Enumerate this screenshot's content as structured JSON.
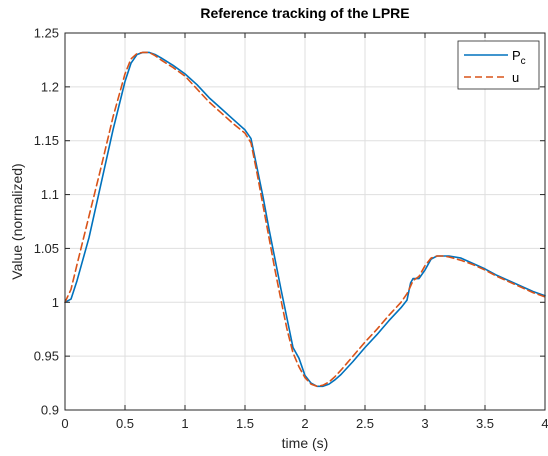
{
  "chart_data": {
    "type": "line",
    "title": "Reference tracking of the LPRE",
    "xlabel": "time (s)",
    "ylabel": "Value (normalized)",
    "xlim": [
      0,
      4
    ],
    "ylim": [
      0.9,
      1.25
    ],
    "xticks": [
      0,
      0.5,
      1,
      1.5,
      2,
      2.5,
      3,
      3.5,
      4
    ],
    "yticks": [
      0.9,
      0.95,
      1,
      1.05,
      1.1,
      1.15,
      1.2,
      1.25
    ],
    "xtick_labels": [
      "0",
      "0.5",
      "1",
      "1.5",
      "2",
      "2.5",
      "3",
      "3.5",
      "4"
    ],
    "ytick_labels": [
      "0.9",
      "0.95",
      "1",
      "1.05",
      "1.1",
      "1.15",
      "1.2",
      "1.25"
    ],
    "grid": true,
    "legend_position": "top-right",
    "legend": {
      "pc_base": "P",
      "pc_sub": "c",
      "u": "u"
    },
    "series": [
      {
        "name": "Pc",
        "color": "#0072BD",
        "style": "solid",
        "x": [
          0,
          0.05,
          0.1,
          0.2,
          0.3,
          0.4,
          0.5,
          0.55,
          0.6,
          0.65,
          0.7,
          0.75,
          0.8,
          0.9,
          1.0,
          1.1,
          1.2,
          1.3,
          1.4,
          1.5,
          1.55,
          1.6,
          1.65,
          1.7,
          1.75,
          1.8,
          1.85,
          1.9,
          1.95,
          2.0,
          2.05,
          2.1,
          2.15,
          2.2,
          2.25,
          2.3,
          2.4,
          2.5,
          2.6,
          2.7,
          2.8,
          2.85,
          2.88,
          2.9,
          2.95,
          3.0,
          3.05,
          3.1,
          3.15,
          3.2,
          3.3,
          3.4,
          3.5,
          3.6,
          3.7,
          3.8,
          3.9,
          4.0
        ],
        "y": [
          1.0,
          1.003,
          1.02,
          1.06,
          1.11,
          1.16,
          1.205,
          1.222,
          1.23,
          1.232,
          1.232,
          1.23,
          1.227,
          1.22,
          1.212,
          1.202,
          1.19,
          1.18,
          1.17,
          1.16,
          1.152,
          1.125,
          1.098,
          1.068,
          1.04,
          1.012,
          0.985,
          0.958,
          0.948,
          0.932,
          0.925,
          0.922,
          0.922,
          0.924,
          0.928,
          0.933,
          0.945,
          0.958,
          0.97,
          0.983,
          0.995,
          1.002,
          1.018,
          1.022,
          1.022,
          1.03,
          1.04,
          1.043,
          1.043,
          1.043,
          1.041,
          1.036,
          1.031,
          1.025,
          1.02,
          1.015,
          1.01,
          1.006
        ]
      },
      {
        "name": "u",
        "color": "#D95319",
        "style": "dashed",
        "x": [
          0,
          0.05,
          0.1,
          0.2,
          0.3,
          0.4,
          0.5,
          0.55,
          0.6,
          0.65,
          0.7,
          0.75,
          0.8,
          0.9,
          1.0,
          1.1,
          1.2,
          1.3,
          1.4,
          1.5,
          1.55,
          1.6,
          1.65,
          1.7,
          1.75,
          1.8,
          1.85,
          1.9,
          1.95,
          2.0,
          2.05,
          2.1,
          2.15,
          2.2,
          2.25,
          2.3,
          2.4,
          2.5,
          2.6,
          2.7,
          2.8,
          2.85,
          2.88,
          2.9,
          2.95,
          3.0,
          3.05,
          3.1,
          3.15,
          3.2,
          3.3,
          3.4,
          3.5,
          3.6,
          3.7,
          3.8,
          3.9,
          4.0
        ],
        "y": [
          1.0,
          1.012,
          1.035,
          1.08,
          1.125,
          1.172,
          1.212,
          1.226,
          1.231,
          1.232,
          1.232,
          1.229,
          1.225,
          1.218,
          1.21,
          1.198,
          1.186,
          1.176,
          1.166,
          1.157,
          1.148,
          1.12,
          1.09,
          1.06,
          1.03,
          1.002,
          0.975,
          0.953,
          0.94,
          0.93,
          0.924,
          0.922,
          0.923,
          0.926,
          0.931,
          0.937,
          0.95,
          0.963,
          0.975,
          0.988,
          1.0,
          1.008,
          1.015,
          1.02,
          1.024,
          1.034,
          1.041,
          1.043,
          1.043,
          1.042,
          1.039,
          1.035,
          1.03,
          1.024,
          1.019,
          1.014,
          1.009,
          1.005
        ]
      }
    ]
  }
}
